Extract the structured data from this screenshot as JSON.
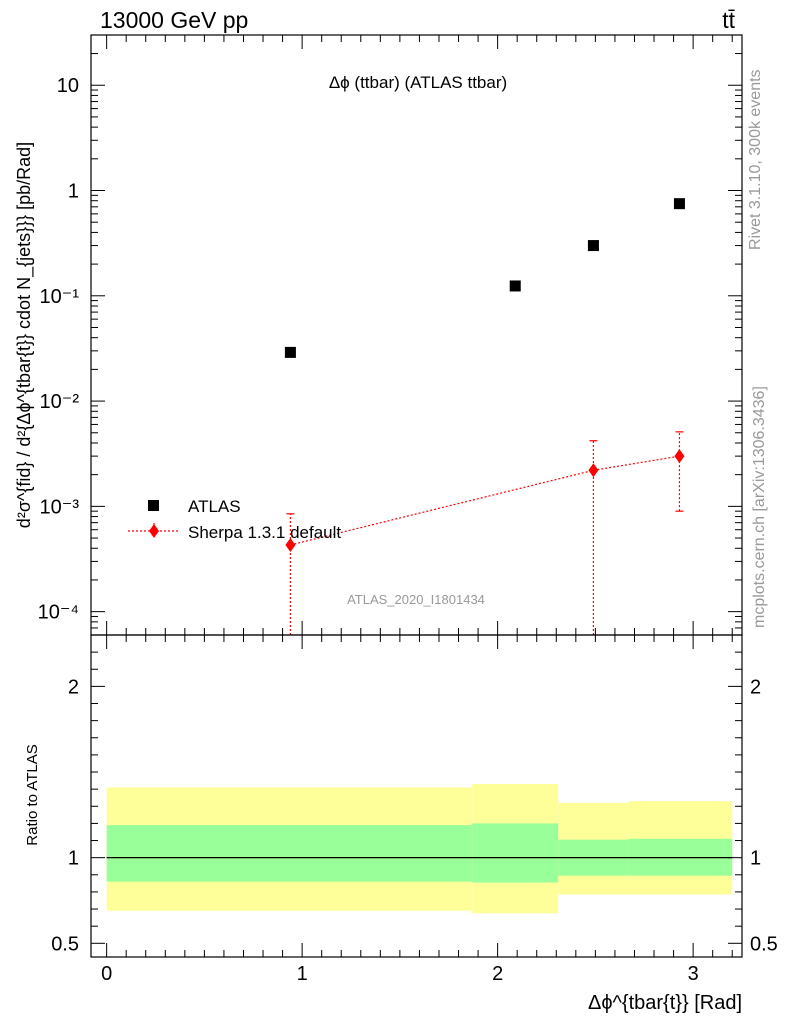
{
  "header": {
    "left": "13000 GeV pp",
    "right": "tt̄"
  },
  "side_text": {
    "rivet": "Rivet 3.1.10,  300k events",
    "mcplots": "mcplots.cern.ch [arXiv:1306.3436]"
  },
  "colors": {
    "atlas": "#000000",
    "sherpa": "#ff0000",
    "band_outer": "#ffff99",
    "band_inner": "#99ff99"
  },
  "chart_data": [
    {
      "type": "scatter",
      "title": "Δϕ (ttbar) (ATLAS ttbar)",
      "watermark": "ATLAS_2020_I1801434",
      "xlabel": "Δϕ^{tbar{t}} [Rad]",
      "ylabel": "d²σ^{fid} / d²{Δϕ^{tbar{t}} cdot N_{jets}}} [pb/Rad]",
      "yscale": "log",
      "xlim": [
        -0.08,
        3.25
      ],
      "ylim": [
        6e-05,
        30
      ],
      "y_ticks": [
        {
          "value": 0.0001,
          "label": "10⁻⁴"
        },
        {
          "value": 0.001,
          "label": "10⁻³"
        },
        {
          "value": 0.01,
          "label": "10⁻²"
        },
        {
          "value": 0.1,
          "label": "10⁻¹"
        },
        {
          "value": 1,
          "label": "1"
        },
        {
          "value": 10,
          "label": "10"
        }
      ],
      "legend": [
        {
          "name": "ATLAS",
          "marker": "square"
        },
        {
          "name": "Sherpa 1.3.1 default",
          "marker": "diamond"
        }
      ],
      "series": [
        {
          "name": "ATLAS",
          "marker": "square",
          "x": [
            0.94,
            2.09,
            2.49,
            2.93
          ],
          "y": [
            0.029,
            0.124,
            0.3,
            0.75
          ]
        },
        {
          "name": "Sherpa 1.3.1 default",
          "marker": "diamond",
          "line": "dotted",
          "x": [
            0.94,
            2.49,
            2.93
          ],
          "y": [
            0.00043,
            0.0022,
            0.003
          ],
          "yerr_low": [
            0.00043,
            0.0022,
            0.0021
          ],
          "yerr_high": [
            0.00042,
            0.002,
            0.0021
          ]
        }
      ]
    },
    {
      "type": "area",
      "ylabel": "Ratio to ATLAS",
      "xlim": [
        -0.08,
        3.25
      ],
      "ylim": [
        0.42,
        2.3
      ],
      "y_ticks": [
        {
          "value": 0.5,
          "label": "0.5"
        },
        {
          "value": 1,
          "label": "1"
        },
        {
          "value": 2,
          "label": "2"
        }
      ],
      "x_ticks": [
        {
          "value": 0,
          "label": "0"
        },
        {
          "value": 1,
          "label": "1"
        },
        {
          "value": 2,
          "label": "2"
        },
        {
          "value": 3,
          "label": "3"
        }
      ],
      "reference_line": 1,
      "bands": [
        {
          "x0": 0.0,
          "x1": 1.87,
          "outer": [
            0.69,
            1.41
          ],
          "inner": [
            0.86,
            1.19
          ]
        },
        {
          "x0": 1.87,
          "x1": 2.31,
          "outer": [
            0.675,
            1.43
          ],
          "inner": [
            0.855,
            1.2
          ]
        },
        {
          "x0": 2.31,
          "x1": 2.67,
          "outer": [
            0.785,
            1.32
          ],
          "inner": [
            0.895,
            1.105
          ]
        },
        {
          "x0": 2.67,
          "x1": 3.2,
          "outer": [
            0.785,
            1.33
          ],
          "inner": [
            0.895,
            1.11
          ]
        }
      ]
    }
  ]
}
